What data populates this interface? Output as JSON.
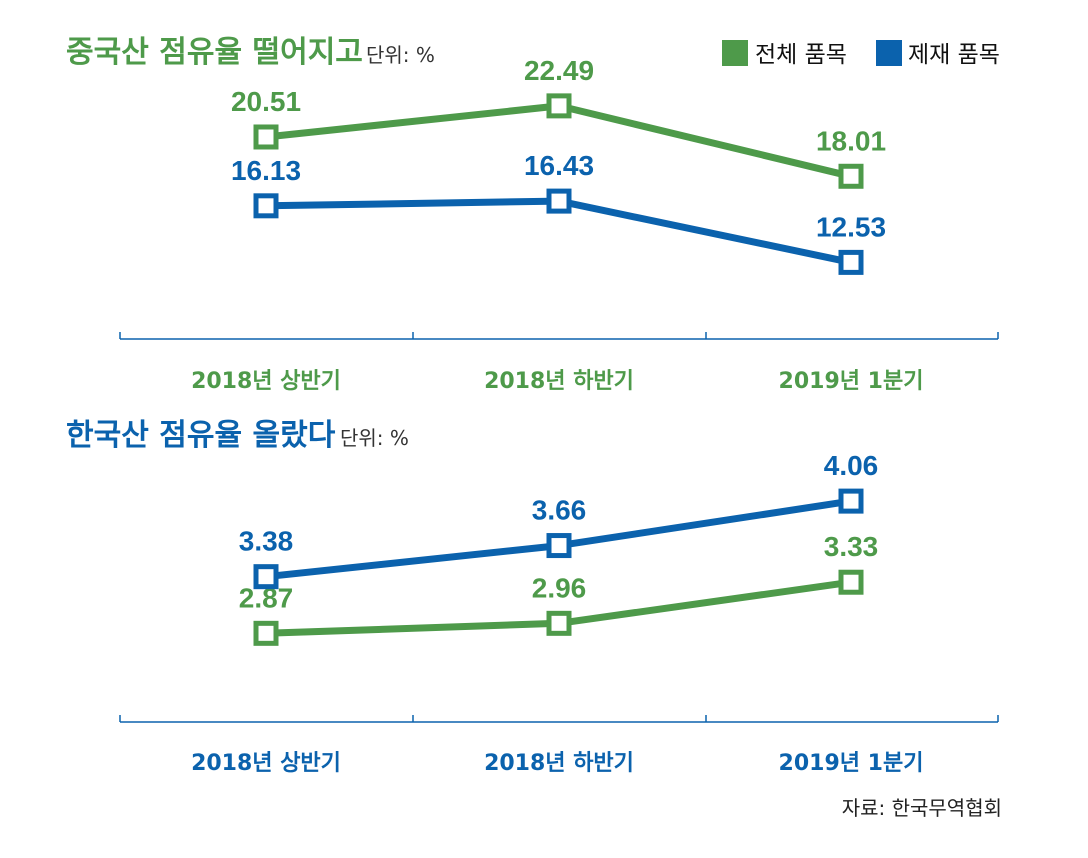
{
  "colors": {
    "total": "#4e9a4a",
    "steel": "#0b62ad",
    "axis": "#0b62ad"
  },
  "legend": [
    {
      "label": "전체 품목",
      "color": "#4e9a4a"
    },
    {
      "label": "제재 품목",
      "color": "#0b62ad"
    }
  ],
  "source": "자료: 한국무역협회",
  "chart_data": [
    {
      "type": "line",
      "title": "중국산 점유율 떨어지고",
      "unit": "단위: %",
      "title_color": "#4e9a4a",
      "categories": [
        "2018년 상반기",
        "2018년 하반기",
        "2019년 1분기"
      ],
      "series": [
        {
          "name": "전체 품목",
          "color": "#4e9a4a",
          "values": [
            20.51,
            22.49,
            18.01
          ],
          "labels": [
            "20.51",
            "22.49",
            "18.01"
          ]
        },
        {
          "name": "제재 품목",
          "color": "#0b62ad",
          "values": [
            16.13,
            16.43,
            12.53
          ],
          "labels": [
            "16.13",
            "16.43",
            "12.53"
          ]
        }
      ],
      "ylim": [
        9.5,
        23.5
      ],
      "grid": false
    },
    {
      "type": "line",
      "title": "한국산 점유율 올랐다",
      "unit": "단위: %",
      "title_color": "#0b62ad",
      "categories": [
        "2018년 상반기",
        "2018년 하반기",
        "2019년 1분기"
      ],
      "series": [
        {
          "name": "전체 품목",
          "color": "#4e9a4a",
          "values": [
            2.87,
            2.96,
            3.33
          ],
          "labels": [
            "2.87",
            "2.96",
            "3.33"
          ]
        },
        {
          "name": "제재 품목",
          "color": "#0b62ad",
          "values": [
            3.38,
            3.66,
            4.06
          ],
          "labels": [
            "3.38",
            "3.66",
            "4.06"
          ]
        }
      ],
      "ylim": [
        2.45,
        4.25
      ],
      "grid": false
    }
  ]
}
